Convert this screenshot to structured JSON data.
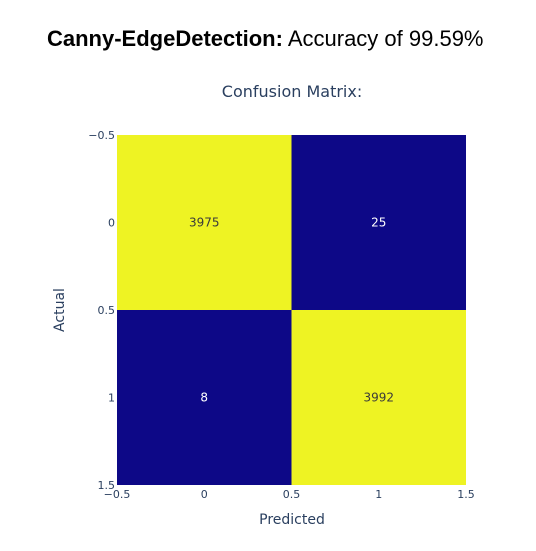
{
  "headline": {
    "method": "Canny-EdgeDetection:",
    "accuracy_text": "Accuracy of 99.59%"
  },
  "colors": {
    "high": "#eef323",
    "low": "#0d0887",
    "text_on_high": "#3a3a3a",
    "text_on_low": "#ffffff",
    "axis_text": "#2a3f5f"
  },
  "chart_data": {
    "type": "heatmap",
    "title": "Confusion Matrix:",
    "xlabel": "Predicted",
    "ylabel": "Actual",
    "x_categories": [
      0,
      1
    ],
    "y_categories": [
      0,
      1
    ],
    "xlim": [
      -0.5,
      1.5
    ],
    "ylim": [
      -0.5,
      1.5
    ],
    "y_reversed": true,
    "x_ticks": [
      "−0.5",
      "0",
      "0.5",
      "1",
      "1.5"
    ],
    "y_ticks": [
      "−0.5",
      "0",
      "0.5",
      "1",
      "1.5"
    ],
    "z": [
      [
        3975,
        25
      ],
      [
        8,
        3992
      ]
    ],
    "z_labels": [
      [
        "3975",
        "25"
      ],
      [
        "8",
        "3992"
      ]
    ],
    "colorscale": "plasma"
  }
}
